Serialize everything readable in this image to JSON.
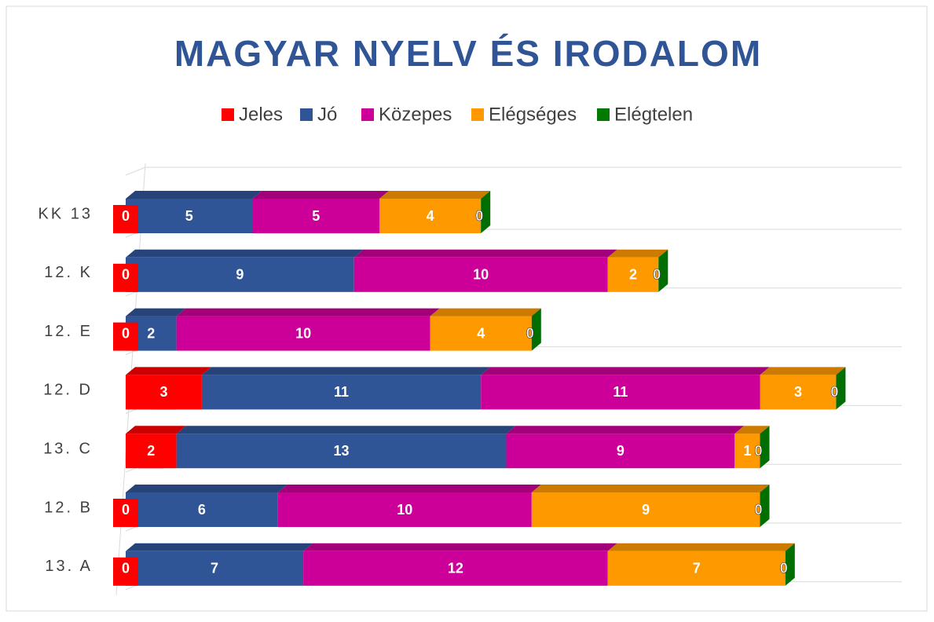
{
  "chart_data": {
    "type": "bar",
    "orientation": "horizontal",
    "stacked": true,
    "three_d": true,
    "title": "MAGYAR NYELV ÉS IRODALOM",
    "categories": [
      "KK 13",
      "12. K",
      "12. E",
      "12. D",
      "13. C",
      "12. B",
      "13. A"
    ],
    "series": [
      {
        "name": "Jeles",
        "color": "#ff0000",
        "values": [
          0,
          0,
          0,
          3,
          2,
          0,
          0
        ]
      },
      {
        "name": "Jó",
        "color": "#2f5597",
        "values": [
          5,
          9,
          2,
          11,
          13,
          6,
          7
        ]
      },
      {
        "name": "Közepes",
        "color": "#cc0099",
        "values": [
          5,
          10,
          10,
          11,
          9,
          10,
          12
        ]
      },
      {
        "name": "Elégséges",
        "color": "#ff9900",
        "values": [
          4,
          2,
          4,
          3,
          1,
          9,
          7
        ]
      },
      {
        "name": "Elégtelen",
        "color": "#007a00",
        "values": [
          0,
          0,
          0,
          0,
          0,
          0,
          0
        ]
      }
    ],
    "legend": "top",
    "grid": true
  }
}
